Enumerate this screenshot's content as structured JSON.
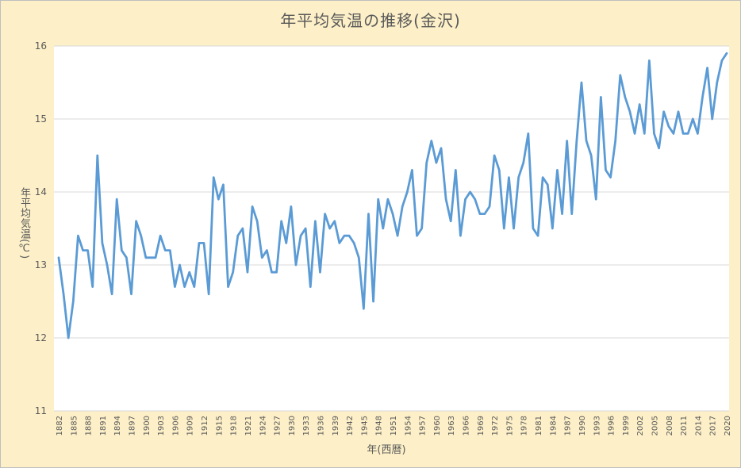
{
  "chart_data": {
    "type": "line",
    "title": "年平均気温の推移(金沢)",
    "xlabel": "年(西暦)",
    "ylabel": "年平均気温(℃)",
    "ylim": [
      11,
      16
    ],
    "yticks": [
      "11",
      "12",
      "13",
      "14",
      "15",
      "16"
    ],
    "xtick_labels": [
      "1882",
      "1885",
      "1888",
      "1891",
      "1894",
      "1897",
      "1900",
      "1903",
      "1906",
      "1909",
      "1912",
      "1915",
      "1918",
      "1921",
      "1924",
      "1927",
      "1930",
      "1933",
      "1936",
      "1939",
      "1942",
      "1945",
      "1948",
      "1951",
      "1954",
      "1957",
      "1960",
      "1963",
      "1966",
      "1969",
      "1972",
      "1975",
      "1978",
      "1981",
      "1984",
      "1987",
      "1990",
      "1993",
      "1996",
      "1999",
      "2002",
      "2005",
      "2008",
      "2011",
      "2014",
      "2017",
      "2020"
    ],
    "grid": true,
    "legend": "none",
    "line_color": "#5b9bd5",
    "series": [
      {
        "x_start": 1882,
        "values": [
          13.1,
          12.6,
          12.0,
          12.5,
          13.4,
          13.2,
          13.2,
          12.7,
          14.5,
          13.3,
          13.0,
          12.6,
          13.9,
          13.2,
          13.1,
          12.6,
          13.6,
          13.4,
          13.1,
          13.1,
          13.1,
          13.4,
          13.2,
          13.2,
          12.7,
          13.0,
          12.7,
          12.9,
          12.7,
          13.3,
          13.3,
          12.6,
          14.2,
          13.9,
          14.1,
          12.7,
          12.9,
          13.4,
          13.5,
          12.9,
          13.8,
          13.6,
          13.1,
          13.2,
          12.9,
          12.9,
          13.6,
          13.3,
          13.8,
          13.0,
          13.4,
          13.5,
          12.7,
          13.6,
          12.9,
          13.7,
          13.5,
          13.6,
          13.3,
          13.4,
          13.4,
          13.3,
          13.1,
          12.4,
          13.7,
          12.5,
          13.9,
          13.5,
          13.9,
          13.7,
          13.4,
          13.8,
          14.0,
          14.3,
          13.4,
          13.5,
          14.4,
          14.7,
          14.4,
          14.6,
          13.9,
          13.6,
          14.3,
          13.4,
          13.9,
          14.0,
          13.9,
          13.7,
          13.7,
          13.8,
          14.5,
          14.3,
          13.5,
          14.2,
          13.5,
          14.2,
          14.4,
          14.8,
          13.5,
          13.4,
          14.2,
          14.1,
          13.5,
          14.3,
          13.7,
          14.7,
          13.7,
          14.7,
          15.5,
          14.7,
          14.5,
          13.9,
          15.3,
          14.3,
          14.2,
          14.7,
          15.6,
          15.3,
          15.1,
          14.8,
          15.2,
          14.8,
          15.8,
          14.8,
          14.6,
          15.1,
          14.9,
          14.8,
          15.1,
          14.8,
          14.8,
          15.0,
          14.8,
          15.3,
          15.7,
          15.0,
          15.5,
          15.8,
          15.9
        ]
      }
    ]
  }
}
